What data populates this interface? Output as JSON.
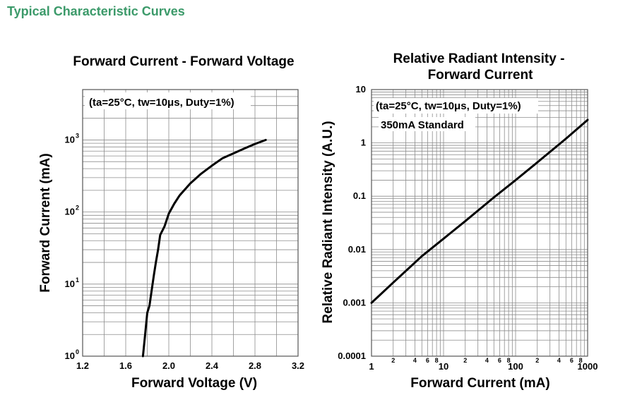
{
  "page": {
    "heading": "Typical Characteristic Curves",
    "heading_color": "#3c9a6a"
  },
  "chart_data": [
    {
      "type": "line",
      "title": "Forward Current - Forward Voltage",
      "note": "(ta=25°C, tw=10μs, Duty=1%)",
      "xlabel": "Forward Voltage (V)",
      "ylabel": "Forward Current (mA)",
      "xlim": [
        1.2,
        3.2
      ],
      "ylim": [
        1,
        5000
      ],
      "yscale": "log",
      "grid": true,
      "x_ticks": [
        "1.2",
        "1.6",
        "2.0",
        "2.4",
        "2.8",
        "3.2"
      ],
      "y_ticks": [
        {
          "base": "10",
          "exp": "0"
        },
        {
          "base": "10",
          "exp": "1"
        },
        {
          "base": "10",
          "exp": "2"
        },
        {
          "base": "10",
          "exp": "3"
        }
      ],
      "series": [
        {
          "x": [
            1.76,
            1.78,
            1.8,
            1.82,
            1.84,
            1.86,
            1.88,
            1.9,
            1.92,
            1.96,
            2.0,
            2.05,
            2.1,
            2.2,
            2.3,
            2.4,
            2.5,
            2.6,
            2.7,
            2.8,
            2.9
          ],
          "y": [
            1,
            2,
            4,
            5,
            8,
            13,
            20,
            30,
            48,
            63,
            95,
            130,
            170,
            250,
            340,
            440,
            560,
            650,
            760,
            880,
            1000
          ]
        }
      ]
    },
    {
      "type": "line",
      "title": [
        "Relative Radiant Intensity -",
        "Forward Current"
      ],
      "note": "(ta=25°C, tw=10μs, Duty=1%)",
      "note2": "350mA Standard",
      "xlabel": "Forward Current (mA)",
      "ylabel": "Relative Radiant Intensity (A.U.)",
      "xscale": "log",
      "yscale": "log",
      "xlim": [
        1,
        1000
      ],
      "ylim": [
        0.0001,
        10
      ],
      "grid": true,
      "x_ticks_major": [
        "1",
        "10",
        "100",
        "1000"
      ],
      "x_ticks_minor": [
        "2",
        "4",
        "6",
        "8"
      ],
      "y_ticks": [
        "0.0001",
        "0.001",
        "0.01",
        "0.1",
        "1",
        "10"
      ],
      "series": [
        {
          "x": [
            1,
            2,
            5,
            10,
            20,
            50,
            100,
            200,
            500,
            1000
          ],
          "y": [
            0.001,
            0.0024,
            0.0075,
            0.016,
            0.034,
            0.095,
            0.2,
            0.43,
            1.2,
            2.7
          ]
        }
      ]
    }
  ]
}
